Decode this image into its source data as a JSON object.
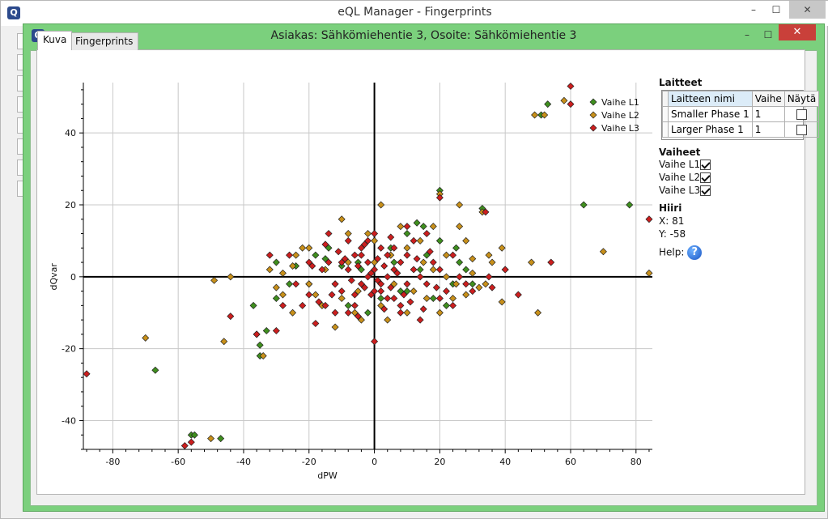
{
  "outer_window": {
    "title": "eQL Manager - Fingerprints",
    "min": "–",
    "max": "☐",
    "close": "✕"
  },
  "inner_window": {
    "title": "Asiakas: Sähkömiehentie 3, Osoite: Sähkömiehentie 3",
    "min": "–",
    "max": "☐",
    "close": "✕"
  },
  "app_icon_letter": "Q",
  "tabs": [
    "Kuva",
    "Fingerprints"
  ],
  "panel": {
    "laitteet_title": "Laitteet",
    "grid_headers": [
      "Laitteen nimi",
      "Vaihe",
      "Näytä"
    ],
    "grid_rows": [
      {
        "name": "Smaller Phase 1",
        "vaihe": "1",
        "nayta": false
      },
      {
        "name": "Larger Phase 1",
        "vaihe": "1",
        "nayta": false
      }
    ],
    "vaiheet_title": "Vaiheet",
    "vaiheet": [
      {
        "label": "Vaihe L1",
        "checked": true
      },
      {
        "label": "Vaihe L2",
        "checked": true
      },
      {
        "label": "Vaihe L3",
        "checked": true
      }
    ],
    "hiiri_title": "Hiiri",
    "hiiri_x": "X: 81",
    "hiiri_y": "Y: -58",
    "help_label": "Help:",
    "help_icon": "?"
  },
  "chart_data": {
    "type": "scatter",
    "xlabel": "dPW",
    "ylabel": "dQvar",
    "xlim": [
      -89,
      85
    ],
    "ylim": [
      -48,
      54
    ],
    "xticks": [
      -80,
      -60,
      -40,
      -20,
      0,
      20,
      40,
      60,
      80
    ],
    "yticks": [
      -40,
      -20,
      0,
      20,
      40
    ],
    "grid": true,
    "legend_position": "top-right",
    "series": [
      {
        "name": "Vaihe L1",
        "color": "#3f8f1e",
        "points": [
          [
            51,
            45
          ],
          [
            53,
            48
          ],
          [
            64,
            20
          ],
          [
            78,
            20
          ],
          [
            20,
            24
          ],
          [
            -56,
            -44
          ],
          [
            -55,
            -44
          ],
          [
            -47,
            -45
          ],
          [
            -67,
            -26
          ],
          [
            -35,
            -22
          ],
          [
            -35,
            -19
          ],
          [
            -33,
            -15
          ],
          [
            -37,
            -8
          ],
          [
            -30,
            -6
          ],
          [
            -20,
            -2
          ],
          [
            -24,
            3
          ],
          [
            -30,
            4
          ],
          [
            -15,
            5
          ],
          [
            -10,
            3
          ],
          [
            -5,
            4
          ],
          [
            5,
            8
          ],
          [
            10,
            12
          ],
          [
            13,
            15
          ],
          [
            15,
            14
          ],
          [
            20,
            10
          ],
          [
            25,
            8
          ],
          [
            28,
            2
          ],
          [
            30,
            -2
          ],
          [
            33,
            19
          ],
          [
            2,
            -6
          ],
          [
            8,
            -4
          ],
          [
            -8,
            -8
          ],
          [
            -2,
            -10
          ],
          [
            10,
            -4
          ],
          [
            18,
            -6
          ],
          [
            -12,
            -2
          ],
          [
            -18,
            6
          ],
          [
            24,
            -2
          ],
          [
            6,
            4
          ],
          [
            -4,
            2
          ],
          [
            14,
            2
          ],
          [
            -26,
            -2
          ],
          [
            -14,
            8
          ],
          [
            16,
            6
          ],
          [
            26,
            4
          ],
          [
            22,
            -8
          ]
        ]
      },
      {
        "name": "Vaihe L2",
        "color": "#c8901a",
        "points": [
          [
            49,
            45
          ],
          [
            58,
            49
          ],
          [
            52,
            45
          ],
          [
            70,
            7
          ],
          [
            84,
            1
          ],
          [
            39,
            8
          ],
          [
            50,
            -10
          ],
          [
            48,
            4
          ],
          [
            39,
            -7
          ],
          [
            28,
            -5
          ],
          [
            26,
            20
          ],
          [
            33,
            18
          ],
          [
            20,
            23
          ],
          [
            2,
            20
          ],
          [
            -49,
            -1
          ],
          [
            -44,
            0
          ],
          [
            -50,
            -45
          ],
          [
            -70,
            -17
          ],
          [
            -46,
            -18
          ],
          [
            -34,
            -22
          ],
          [
            -36,
            -16
          ],
          [
            -25,
            -10
          ],
          [
            -28,
            -5
          ],
          [
            -18,
            -5
          ],
          [
            -25,
            3
          ],
          [
            -28,
            1
          ],
          [
            -22,
            8
          ],
          [
            -10,
            16
          ],
          [
            -20,
            8
          ],
          [
            -8,
            12
          ],
          [
            -6,
            -10
          ],
          [
            -12,
            -14
          ],
          [
            -4,
            -12
          ],
          [
            0,
            10
          ],
          [
            5,
            6
          ],
          [
            10,
            8
          ],
          [
            15,
            4
          ],
          [
            18,
            2
          ],
          [
            22,
            6
          ],
          [
            25,
            -2
          ],
          [
            30,
            1
          ],
          [
            35,
            6
          ],
          [
            -15,
            2
          ],
          [
            -10,
            -6
          ],
          [
            -5,
            -4
          ],
          [
            2,
            -8
          ],
          [
            6,
            -2
          ],
          [
            12,
            -4
          ],
          [
            16,
            -6
          ],
          [
            20,
            -10
          ],
          [
            26,
            14
          ],
          [
            30,
            5
          ],
          [
            32,
            -3
          ],
          [
            36,
            4
          ],
          [
            -30,
            -3
          ],
          [
            -24,
            6
          ],
          [
            -16,
            -8
          ],
          [
            -2,
            12
          ],
          [
            8,
            14
          ],
          [
            14,
            10
          ],
          [
            28,
            10
          ],
          [
            24,
            -6
          ],
          [
            40,
            2
          ],
          [
            -32,
            2
          ],
          [
            -20,
            -2
          ],
          [
            -8,
            4
          ],
          [
            0,
            4
          ],
          [
            4,
            -12
          ],
          [
            10,
            -10
          ],
          [
            18,
            14
          ],
          [
            22,
            0
          ],
          [
            34,
            -2
          ]
        ]
      },
      {
        "name": "Vaihe L3",
        "color": "#cc1e1e",
        "points": [
          [
            60,
            53
          ],
          [
            60,
            48
          ],
          [
            84,
            16
          ],
          [
            54,
            4
          ],
          [
            44,
            -5
          ],
          [
            40,
            2
          ],
          [
            34,
            18
          ],
          [
            20,
            22
          ],
          [
            -88,
            -27
          ],
          [
            -58,
            -47
          ],
          [
            -56,
            -46
          ],
          [
            -44,
            -11
          ],
          [
            -36,
            -16
          ],
          [
            -30,
            -15
          ],
          [
            -32,
            6
          ],
          [
            -28,
            -8
          ],
          [
            -18,
            -13
          ],
          [
            -20,
            -5
          ],
          [
            -15,
            -8
          ],
          [
            -12,
            -10
          ],
          [
            -8,
            -10
          ],
          [
            -6,
            -5
          ],
          [
            -4,
            -2
          ],
          [
            -2,
            0
          ],
          [
            0,
            -18
          ],
          [
            0,
            -4
          ],
          [
            2,
            -2
          ],
          [
            4,
            0
          ],
          [
            6,
            2
          ],
          [
            8,
            4
          ],
          [
            10,
            6
          ],
          [
            12,
            2
          ],
          [
            14,
            0
          ],
          [
            16,
            -2
          ],
          [
            18,
            4
          ],
          [
            20,
            2
          ],
          [
            22,
            -4
          ],
          [
            24,
            6
          ],
          [
            26,
            0
          ],
          [
            30,
            -4
          ],
          [
            35,
            0
          ],
          [
            -10,
            4
          ],
          [
            -8,
            2
          ],
          [
            -6,
            6
          ],
          [
            -4,
            8
          ],
          [
            -2,
            10
          ],
          [
            0,
            12
          ],
          [
            2,
            8
          ],
          [
            4,
            6
          ],
          [
            6,
            -6
          ],
          [
            8,
            -8
          ],
          [
            10,
            -2
          ],
          [
            12,
            10
          ],
          [
            -16,
            2
          ],
          [
            -14,
            4
          ],
          [
            -12,
            -2
          ],
          [
            -10,
            -4
          ],
          [
            -20,
            4
          ],
          [
            -24,
            -2
          ],
          [
            -1,
            1
          ],
          [
            1,
            -1
          ],
          [
            3,
            3
          ],
          [
            5,
            -3
          ],
          [
            -3,
            -3
          ],
          [
            -5,
            3
          ],
          [
            7,
            1
          ],
          [
            -7,
            -1
          ],
          [
            9,
            -5
          ],
          [
            -9,
            5
          ],
          [
            11,
            -7
          ],
          [
            -11,
            7
          ],
          [
            13,
            5
          ],
          [
            -13,
            -5
          ],
          [
            15,
            -9
          ],
          [
            -15,
            9
          ],
          [
            17,
            7
          ],
          [
            -17,
            -7
          ],
          [
            19,
            -3
          ],
          [
            -19,
            3
          ],
          [
            1,
            5
          ],
          [
            -1,
            -5
          ],
          [
            3,
            -9
          ],
          [
            -3,
            9
          ],
          [
            5,
            11
          ],
          [
            -5,
            -11
          ],
          [
            0,
            2
          ],
          [
            2,
            -4
          ],
          [
            -2,
            4
          ],
          [
            4,
            -6
          ],
          [
            -4,
            6
          ],
          [
            6,
            8
          ],
          [
            -6,
            -8
          ],
          [
            8,
            -10
          ],
          [
            -8,
            10
          ],
          [
            36,
            -3
          ],
          [
            28,
            -2
          ],
          [
            14,
            -12
          ],
          [
            -14,
            12
          ],
          [
            -22,
            -8
          ],
          [
            -26,
            6
          ],
          [
            16,
            12
          ],
          [
            20,
            -6
          ],
          [
            24,
            -8
          ],
          [
            10,
            14
          ]
        ]
      }
    ]
  }
}
